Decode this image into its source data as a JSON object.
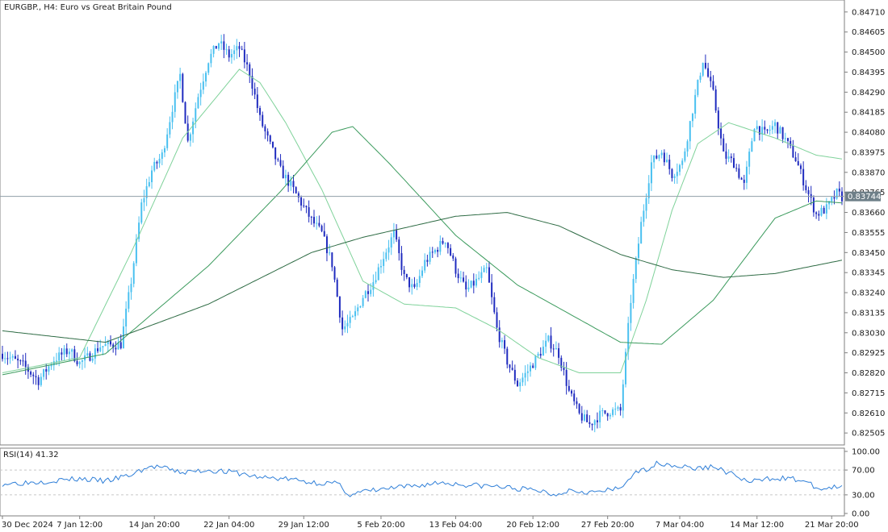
{
  "chart_data": [
    {
      "type": "candlestick",
      "title": "EURGBP., H4:  Euro vs Great Britain Pound",
      "price_labels": [
        "0.84710",
        "0.84605",
        "0.84500",
        "0.84395",
        "0.84290",
        "0.84185",
        "0.84080",
        "0.83975",
        "0.83870",
        "0.83765",
        "0.83660",
        "0.83555",
        "0.83450",
        "0.83345",
        "0.83240",
        "0.83135",
        "0.83030",
        "0.82925",
        "0.82820",
        "0.82715",
        "0.82610",
        "0.82505"
      ],
      "ylim": [
        0.82455,
        0.8476
      ],
      "current_price": "0.83744",
      "current_price_value": 0.83744,
      "time_labels": [
        "30 Dec 2024",
        "7 Jan 12:00",
        "14 Jan 20:00",
        "22 Jan 04:00",
        "29 Jan 12:00",
        "5 Feb 20:00",
        "13 Feb 04:00",
        "20 Feb 12:00",
        "27 Feb 20:00",
        "7 Mar 04:00",
        "14 Mar 12:00",
        "21 Mar 20:00"
      ],
      "close_path": [
        [
          0,
          0.8292
        ],
        [
          8,
          0.8286
        ],
        [
          14,
          0.8278
        ],
        [
          20,
          0.8289
        ],
        [
          26,
          0.8294
        ],
        [
          30,
          0.8287
        ],
        [
          34,
          0.8291
        ],
        [
          38,
          0.8296
        ],
        [
          46,
          0.8297
        ],
        [
          50,
          0.833
        ],
        [
          54,
          0.837
        ],
        [
          58,
          0.8388
        ],
        [
          62,
          0.8396
        ],
        [
          66,
          0.8421
        ],
        [
          69,
          0.8438
        ],
        [
          72,
          0.8403
        ],
        [
          76,
          0.8427
        ],
        [
          80,
          0.8446
        ],
        [
          84,
          0.8455
        ],
        [
          88,
          0.8448
        ],
        [
          92,
          0.8452
        ],
        [
          96,
          0.8439
        ],
        [
          100,
          0.8415
        ],
        [
          104,
          0.8401
        ],
        [
          108,
          0.8388
        ],
        [
          112,
          0.838
        ],
        [
          116,
          0.8371
        ],
        [
          120,
          0.8362
        ],
        [
          124,
          0.8355
        ],
        [
          128,
          0.8339
        ],
        [
          132,
          0.8305
        ],
        [
          136,
          0.831
        ],
        [
          140,
          0.8322
        ],
        [
          144,
          0.833
        ],
        [
          148,
          0.8343
        ],
        [
          152,
          0.8355
        ],
        [
          156,
          0.8332
        ],
        [
          160,
          0.8325
        ],
        [
          164,
          0.834
        ],
        [
          168,
          0.8346
        ],
        [
          172,
          0.8352
        ],
        [
          176,
          0.8336
        ],
        [
          180,
          0.8325
        ],
        [
          184,
          0.833
        ],
        [
          188,
          0.8336
        ],
        [
          192,
          0.8305
        ],
        [
          196,
          0.8288
        ],
        [
          200,
          0.8276
        ],
        [
          204,
          0.8283
        ],
        [
          208,
          0.8291
        ],
        [
          212,
          0.8299
        ],
        [
          216,
          0.8292
        ],
        [
          220,
          0.8272
        ],
        [
          224,
          0.826
        ],
        [
          228,
          0.8255
        ],
        [
          232,
          0.826
        ],
        [
          236,
          0.8262
        ],
        [
          240,
          0.8262
        ],
        [
          244,
          0.832
        ],
        [
          248,
          0.836
        ],
        [
          252,
          0.8392
        ],
        [
          256,
          0.8398
        ],
        [
          260,
          0.8386
        ],
        [
          264,
          0.8392
        ],
        [
          268,
          0.842
        ],
        [
          272,
          0.8446
        ],
        [
          276,
          0.8428
        ],
        [
          280,
          0.8396
        ],
        [
          284,
          0.8392
        ],
        [
          288,
          0.838
        ],
        [
          292,
          0.8412
        ],
        [
          296,
          0.8407
        ],
        [
          300,
          0.8412
        ],
        [
          304,
          0.8404
        ],
        [
          308,
          0.8394
        ],
        [
          312,
          0.8379
        ],
        [
          316,
          0.8365
        ],
        [
          320,
          0.8368
        ],
        [
          324,
          0.8376
        ],
        [
          326,
          0.8374
        ]
      ],
      "ma_fast": [
        [
          0,
          0.8282
        ],
        [
          30,
          0.829
        ],
        [
          50,
          0.8345
        ],
        [
          70,
          0.8405
        ],
        [
          92,
          0.8441
        ],
        [
          100,
          0.8434
        ],
        [
          110,
          0.8413
        ],
        [
          124,
          0.8378
        ],
        [
          140,
          0.833
        ],
        [
          156,
          0.8318
        ],
        [
          176,
          0.8316
        ],
        [
          192,
          0.8305
        ],
        [
          208,
          0.829
        ],
        [
          224,
          0.8282
        ],
        [
          240,
          0.8282
        ],
        [
          250,
          0.832
        ],
        [
          260,
          0.8367
        ],
        [
          270,
          0.8402
        ],
        [
          282,
          0.8413
        ],
        [
          300,
          0.8405
        ],
        [
          316,
          0.8396
        ],
        [
          326,
          0.8394
        ]
      ],
      "ma_mid": [
        [
          0,
          0.8281
        ],
        [
          40,
          0.8292
        ],
        [
          80,
          0.8338
        ],
        [
          108,
          0.8377
        ],
        [
          128,
          0.8408
        ],
        [
          136,
          0.8411
        ],
        [
          150,
          0.8392
        ],
        [
          176,
          0.8354
        ],
        [
          200,
          0.8328
        ],
        [
          224,
          0.831
        ],
        [
          240,
          0.8298
        ],
        [
          256,
          0.8297
        ],
        [
          276,
          0.832
        ],
        [
          300,
          0.8363
        ],
        [
          316,
          0.8372
        ],
        [
          326,
          0.8371
        ]
      ],
      "ma_slow": [
        [
          0,
          0.8304
        ],
        [
          40,
          0.8298
        ],
        [
          80,
          0.8318
        ],
        [
          120,
          0.8345
        ],
        [
          140,
          0.8353
        ],
        [
          176,
          0.8364
        ],
        [
          196,
          0.8366
        ],
        [
          216,
          0.8359
        ],
        [
          240,
          0.8344
        ],
        [
          260,
          0.8336
        ],
        [
          280,
          0.8332
        ],
        [
          300,
          0.8334
        ],
        [
          326,
          0.8341
        ]
      ],
      "colors": {
        "up": "#49c0f0",
        "down": "#1f2bbf",
        "ma_fast": "#7fd29a",
        "ma_mid": "#3a9a5c",
        "ma_slow": "#2e6b44",
        "price_line": "#8f9fa8",
        "price_tag": "#6e7f88"
      }
    },
    {
      "type": "line",
      "title": "RSI(14) 41.32",
      "y_labels": [
        "100.00",
        "70.00",
        "30.00",
        "0.00"
      ],
      "ylim": [
        0,
        100
      ],
      "levels": [
        70,
        30
      ],
      "series": [
        {
          "values": [
            [
              0,
              48
            ],
            [
              10,
              50
            ],
            [
              20,
              53
            ],
            [
              30,
              56
            ],
            [
              40,
              52
            ],
            [
              50,
              62
            ],
            [
              55,
              72
            ],
            [
              60,
              76
            ],
            [
              65,
              70
            ],
            [
              70,
              66
            ],
            [
              80,
              70
            ],
            [
              90,
              66
            ],
            [
              100,
              58
            ],
            [
              110,
              56
            ],
            [
              120,
              50
            ],
            [
              130,
              48
            ],
            [
              135,
              30
            ],
            [
              140,
              35
            ],
            [
              150,
              40
            ],
            [
              160,
              44
            ],
            [
              170,
              50
            ],
            [
              180,
              46
            ],
            [
              190,
              44
            ],
            [
              200,
              40
            ],
            [
              210,
              36
            ],
            [
              214,
              30
            ],
            [
              220,
              38
            ],
            [
              230,
              34
            ],
            [
              240,
              40
            ],
            [
              244,
              60
            ],
            [
              250,
              72
            ],
            [
              255,
              82
            ],
            [
              260,
              78
            ],
            [
              270,
              72
            ],
            [
              276,
              76
            ],
            [
              284,
              62
            ],
            [
              290,
              50
            ],
            [
              300,
              58
            ],
            [
              310,
              54
            ],
            [
              318,
              38
            ],
            [
              322,
              42
            ],
            [
              326,
              41
            ]
          ]
        }
      ],
      "colors": {
        "line": "#2f7fd8",
        "level": "#c8c8c8"
      }
    }
  ]
}
